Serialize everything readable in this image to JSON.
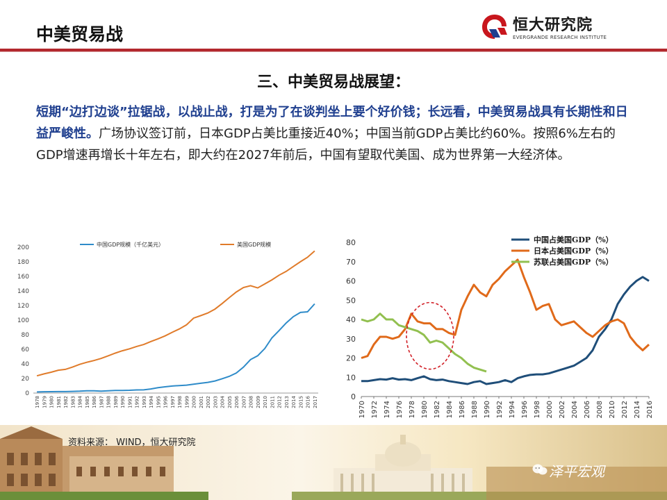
{
  "header": {
    "title": "中美贸易战",
    "logo_cn": "恒大研究院",
    "logo_en": "EVERGRANDE RESEARCH INSTITUTE",
    "accent_color": "#b3282d"
  },
  "section_title": "三、中美贸易战展望：",
  "paragraph": {
    "bold_text": "短期“边打边谈”拉锯战，以战止战，打是为了在谈判坐上要个好价钱；长远看，中美贸易战具有长期性和日益严峻性。",
    "normal_text": "广场协议签订前，日本GDP占美比重接近40%；中国当前GDP占美比约60%。按照6%左右的GDP增速再增长十年左右，即大约在2027年前后，中国有望取代美国、成为世界第一大经济体。"
  },
  "footer": {
    "source": "资料来源： WIND，恒大研究院",
    "wechat": "泽平宏观"
  },
  "chart_data": [
    {
      "type": "line",
      "x": [
        "1978",
        "1979",
        "1980",
        "1981",
        "1982",
        "1983",
        "1984",
        "1985",
        "1986",
        "1987",
        "1988",
        "1989",
        "1990",
        "1991",
        "1992",
        "1993",
        "1994",
        "1995",
        "1996",
        "1997",
        "1998",
        "1999",
        "2000",
        "2001",
        "2002",
        "2003",
        "2004",
        "2005",
        "2006",
        "2007",
        "2008",
        "2009",
        "2010",
        "2011",
        "2012",
        "2013",
        "2014",
        "2015",
        "2016",
        "2017"
      ],
      "ylim": [
        0,
        200
      ],
      "yticks": [
        0,
        20,
        40,
        60,
        80,
        100,
        120,
        140,
        160,
        180,
        200
      ],
      "legend_position": "top",
      "series": [
        {
          "name": "中国GDP规模（千亿美元）",
          "color": "#2e8bc9",
          "values": [
            1.5,
            1.8,
            1.9,
            2.0,
            2.0,
            2.3,
            2.6,
            3.1,
            3.0,
            2.7,
            3.1,
            3.5,
            3.6,
            3.8,
            4.3,
            4.4,
            5.6,
            7.3,
            8.6,
            9.6,
            10.3,
            10.9,
            12.1,
            13.4,
            14.7,
            16.6,
            19.6,
            22.9,
            27.5,
            35.5,
            45.9,
            51.1,
            61.0,
            75.7,
            85.6,
            96.1,
            104.8,
            110.6,
            111.4,
            122.4
          ]
        },
        {
          "name": "美国GDP规模",
          "color": "#e07b2a",
          "values": [
            23.6,
            26.3,
            28.6,
            31.3,
            32.5,
            35.6,
            39.3,
            42.2,
            44.6,
            47.4,
            51.0,
            54.8,
            58.0,
            60.7,
            63.9,
            66.6,
            70.7,
            74.4,
            78.4,
            83.3,
            87.9,
            93.5,
            102.8,
            106.2,
            109.8,
            115.1,
            122.7,
            130.9,
            138.6,
            144.8,
            147.2,
            144.2,
            149.6,
            155.2,
            161.6,
            166.9,
            173.5,
            180.1,
            186.2,
            194.9
          ]
        }
      ]
    },
    {
      "type": "line",
      "x_ticks": [
        "1970",
        "1972",
        "1974",
        "1976",
        "1978",
        "1980",
        "1982",
        "1984",
        "1986",
        "1988",
        "1990",
        "1992",
        "1994",
        "1996",
        "1998",
        "2000",
        "2002",
        "2004",
        "2006",
        "2008",
        "2010",
        "2012",
        "2014",
        "2016"
      ],
      "xlim": [
        1970,
        2016
      ],
      "ylim": [
        0,
        80
      ],
      "yticks": [
        0,
        10,
        20,
        30,
        40,
        50,
        60,
        70,
        80
      ],
      "legend_position": "top-right",
      "series": [
        {
          "name": "中国占美国GDP（%）",
          "color": "#1f4e79",
          "points": [
            [
              1970,
              8
            ],
            [
              1971,
              8
            ],
            [
              1972,
              8.5
            ],
            [
              1973,
              9
            ],
            [
              1974,
              8.8
            ],
            [
              1975,
              9.5
            ],
            [
              1976,
              8.8
            ],
            [
              1977,
              9
            ],
            [
              1978,
              8.5
            ],
            [
              1979,
              9.5
            ],
            [
              1980,
              10.5
            ],
            [
              1981,
              9
            ],
            [
              1982,
              8.5
            ],
            [
              1983,
              8.8
            ],
            [
              1984,
              8
            ],
            [
              1985,
              7.5
            ],
            [
              1986,
              7
            ],
            [
              1987,
              6.5
            ],
            [
              1988,
              7.5
            ],
            [
              1989,
              8
            ],
            [
              1990,
              6.5
            ],
            [
              1991,
              7
            ],
            [
              1992,
              7.5
            ],
            [
              1993,
              8.5
            ],
            [
              1994,
              7.5
            ],
            [
              1995,
              9.5
            ],
            [
              1996,
              10.5
            ],
            [
              1997,
              11.2
            ],
            [
              1998,
              11.5
            ],
            [
              1999,
              11.5
            ],
            [
              2000,
              12
            ],
            [
              2001,
              13
            ],
            [
              2002,
              14
            ],
            [
              2003,
              15
            ],
            [
              2004,
              16
            ],
            [
              2005,
              18
            ],
            [
              2006,
              20
            ],
            [
              2007,
              24
            ],
            [
              2008,
              31
            ],
            [
              2009,
              35
            ],
            [
              2010,
              40
            ],
            [
              2011,
              48
            ],
            [
              2012,
              53
            ],
            [
              2013,
              57
            ],
            [
              2014,
              60
            ],
            [
              2015,
              62
            ],
            [
              2016,
              60
            ]
          ]
        },
        {
          "name": "日本占美国GDP（%）",
          "color": "#e06a1a",
          "points": [
            [
              1970,
              20
            ],
            [
              1971,
              21
            ],
            [
              1972,
              27
            ],
            [
              1973,
              31
            ],
            [
              1974,
              31
            ],
            [
              1975,
              30
            ],
            [
              1976,
              31
            ],
            [
              1977,
              35
            ],
            [
              1978,
              43
            ],
            [
              1979,
              39
            ],
            [
              1980,
              38
            ],
            [
              1981,
              38
            ],
            [
              1982,
              35
            ],
            [
              1983,
              35
            ],
            [
              1984,
              33
            ],
            [
              1985,
              32
            ],
            [
              1986,
              45
            ],
            [
              1987,
              52
            ],
            [
              1988,
              58
            ],
            [
              1989,
              54
            ],
            [
              1990,
              52
            ],
            [
              1991,
              58
            ],
            [
              1992,
              61
            ],
            [
              1993,
              65
            ],
            [
              1994,
              68
            ],
            [
              1995,
              71
            ],
            [
              1996,
              62
            ],
            [
              1997,
              54
            ],
            [
              1998,
              45
            ],
            [
              1999,
              47
            ],
            [
              2000,
              48
            ],
            [
              2001,
              40
            ],
            [
              2002,
              37
            ],
            [
              2003,
              38
            ],
            [
              2004,
              39
            ],
            [
              2005,
              36
            ],
            [
              2006,
              33
            ],
            [
              2007,
              31
            ],
            [
              2008,
              34
            ],
            [
              2009,
              37
            ],
            [
              2010,
              39
            ],
            [
              2011,
              40
            ],
            [
              2012,
              38
            ],
            [
              2013,
              31
            ],
            [
              2014,
              27
            ],
            [
              2015,
              24
            ],
            [
              2016,
              27
            ]
          ]
        },
        {
          "name": "苏联占美国GDP（%）",
          "color": "#92c050",
          "points": [
            [
              1970,
              40
            ],
            [
              1971,
              39
            ],
            [
              1972,
              40
            ],
            [
              1973,
              43
            ],
            [
              1974,
              40
            ],
            [
              1975,
              40
            ],
            [
              1976,
              37
            ],
            [
              1977,
              36
            ],
            [
              1978,
              35
            ],
            [
              1979,
              34
            ],
            [
              1980,
              32
            ],
            [
              1981,
              28
            ],
            [
              1982,
              29
            ],
            [
              1983,
              28
            ],
            [
              1984,
              25
            ],
            [
              1985,
              22
            ],
            [
              1986,
              20
            ],
            [
              1987,
              17
            ],
            [
              1988,
              15
            ],
            [
              1989,
              14
            ],
            [
              1990,
              13
            ]
          ]
        }
      ]
    }
  ]
}
